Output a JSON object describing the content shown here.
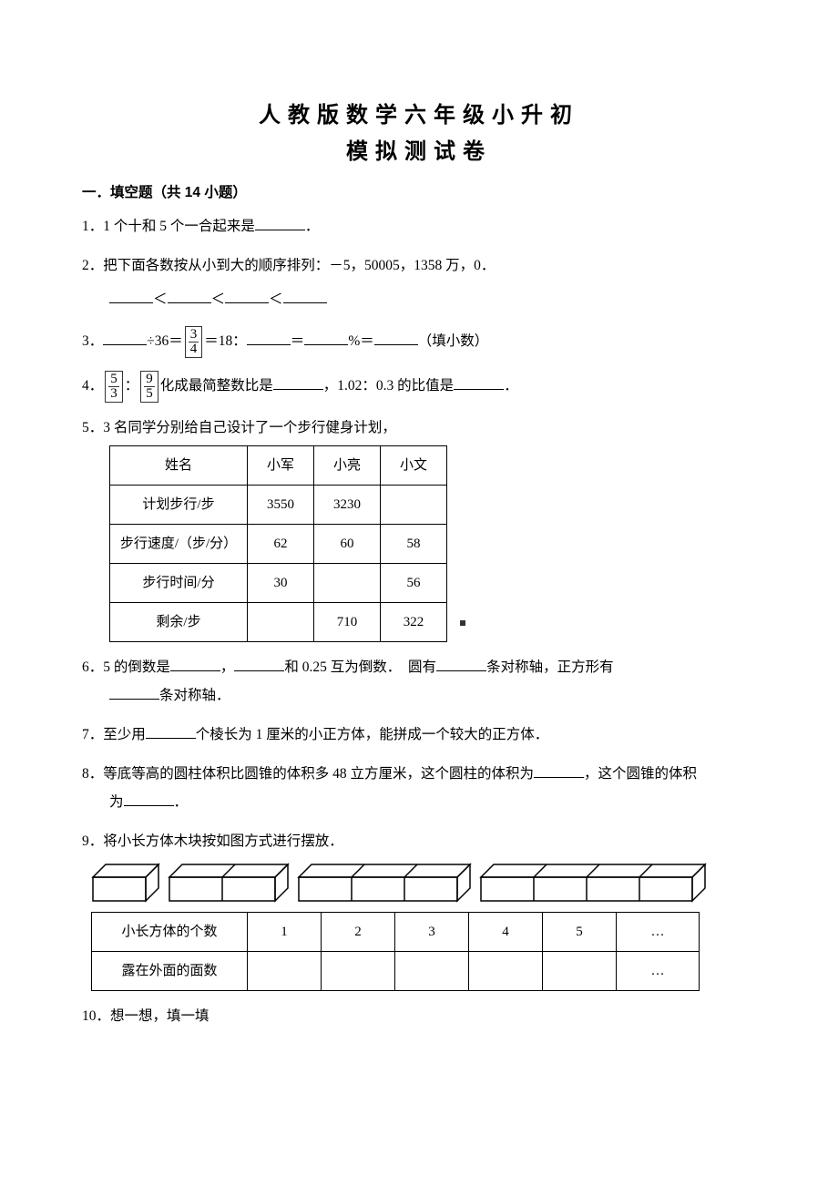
{
  "title_line1": "人教版数学六年级小升初",
  "title_line2": "模拟测试卷",
  "section1_head": "一．填空题（共 14 小题）",
  "q1": {
    "num": "1．",
    "a": "1 个十和 5 个一合起来是",
    "b": "．"
  },
  "q2": {
    "num": "2．",
    "line1": "把下面各数按从小到大的顺序排列：－5，50005，1358 万，0．",
    "lt": "＜"
  },
  "q3": {
    "num": "3．",
    "a": "÷36＝",
    "frac_t": "3",
    "frac_b": "4",
    "b": "＝18：",
    "c": "＝",
    "d": "%＝",
    "e": "（填小数）"
  },
  "q4": {
    "num": "4．",
    "f1_t": "5",
    "f1_b": "3",
    "colon": "：",
    "f2_t": "9",
    "f2_b": "5",
    "a": "化成最简整数比是",
    "b": "，1.02：0.3 的比值是",
    "c": "．"
  },
  "q5": {
    "num": "5．",
    "text": "3 名同学分别给自己设计了一个步行健身计划，",
    "cols": [
      "姓名",
      "小军",
      "小亮",
      "小文"
    ],
    "rows": [
      [
        "计划步行/步",
        "3550",
        "3230",
        ""
      ],
      [
        "步行速度/（步/分）",
        "62",
        "60",
        "58"
      ],
      [
        "步行时间/分",
        "30",
        "",
        "56"
      ],
      [
        "剩余/步",
        "",
        "710",
        "322"
      ]
    ]
  },
  "q6": {
    "num": "6．",
    "a": "5 的倒数是",
    "b": "，",
    "c": "和 0.25 互为倒数．　圆有",
    "d": "条对称轴，正方形有",
    "e": "条对称轴．"
  },
  "q7": {
    "num": "7．",
    "a": "至少用",
    "b": "个棱长为 1 厘米的小正方体，能拼成一个较大的正方体．"
  },
  "q8": {
    "num": "8．",
    "a": "等底等高的圆柱体积比圆锥的体积多 48 立方厘米，这个圆柱的体积为",
    "b": "，这个圆锥的体积",
    "c": "为",
    "d": "．"
  },
  "q9": {
    "num": "9．",
    "text": "将小长方体木块按如图方式进行摆放．",
    "row1": [
      "小长方体的个数",
      "1",
      "2",
      "3",
      "4",
      "5",
      "…"
    ],
    "row2": [
      "露在外面的面数",
      "",
      "",
      "",
      "",
      "",
      "…"
    ]
  },
  "q10": {
    "num": "10．",
    "text": "想一想，填一填"
  },
  "colors": {
    "text": "#000000",
    "background": "#ffffff",
    "border": "#000000",
    "diagram_stroke": "#000000"
  },
  "diagram": {
    "groups": [
      1,
      2,
      3,
      4
    ],
    "unit_w": 58,
    "unit_h": 26,
    "depth": 14,
    "stroke": "#000000",
    "stroke_width": 1.5
  }
}
